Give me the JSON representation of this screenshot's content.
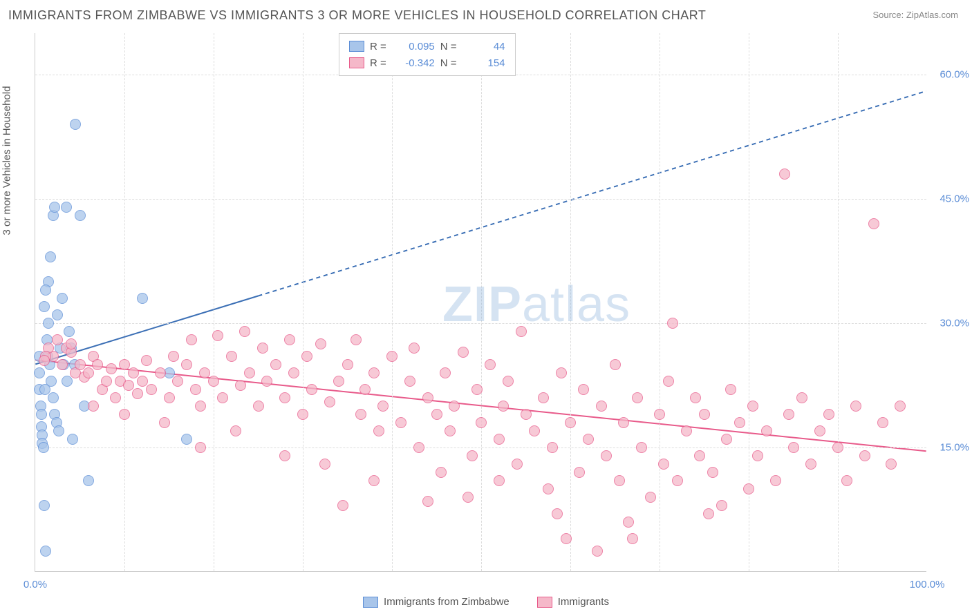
{
  "title": "IMMIGRANTS FROM ZIMBABWE VS IMMIGRANTS 3 OR MORE VEHICLES IN HOUSEHOLD CORRELATION CHART",
  "source_label": "Source: ZipAtlas.com",
  "yaxis_title": "3 or more Vehicles in Household",
  "watermark_a": "ZIP",
  "watermark_b": "atlas",
  "chart": {
    "type": "scatter",
    "xlim": [
      0,
      100
    ],
    "ylim": [
      0,
      65
    ],
    "xtick_labels": [
      {
        "v": 0,
        "label": "0.0%"
      },
      {
        "v": 100,
        "label": "100.0%"
      }
    ],
    "ytick_labels": [
      {
        "v": 15,
        "label": "15.0%"
      },
      {
        "v": 30,
        "label": "30.0%"
      },
      {
        "v": 45,
        "label": "45.0%"
      },
      {
        "v": 60,
        "label": "60.0%"
      }
    ],
    "x_gridlines": [
      10,
      20,
      30,
      40,
      50,
      60,
      70,
      80,
      90
    ],
    "y_gridlines": [
      15,
      30,
      45,
      60
    ],
    "background_color": "#ffffff",
    "grid_color": "#dddddd",
    "axis_color": "#cccccc",
    "tick_label_color": "#5b8dd6",
    "marker_size": 16,
    "series": [
      {
        "name": "Immigrants from Zimbabwe",
        "fill_color": "#a8c5ea",
        "border_color": "#5b8dd6",
        "fill_opacity": 0.45,
        "r_value": "0.095",
        "n_value": "44",
        "trend": {
          "x1": 0,
          "y1": 25,
          "x2": 100,
          "y2": 58,
          "solid_until_x": 25,
          "color": "#3b6fb5",
          "width": 2
        },
        "points": [
          [
            0.5,
            26
          ],
          [
            0.5,
            24
          ],
          [
            0.5,
            22
          ],
          [
            0.6,
            20
          ],
          [
            0.7,
            19
          ],
          [
            0.7,
            17.5
          ],
          [
            0.8,
            16.5
          ],
          [
            0.8,
            15.5
          ],
          [
            0.9,
            15
          ],
          [
            1.0,
            8
          ],
          [
            1.2,
            2.5
          ],
          [
            1.5,
            30
          ],
          [
            1.5,
            35
          ],
          [
            1.7,
            38
          ],
          [
            2.0,
            43
          ],
          [
            2.2,
            44
          ],
          [
            2.5,
            31
          ],
          [
            3.0,
            33
          ],
          [
            3.5,
            44
          ],
          [
            3.8,
            29
          ],
          [
            4.0,
            27
          ],
          [
            4.2,
            16
          ],
          [
            4.5,
            54
          ],
          [
            5.0,
            43
          ],
          [
            5.5,
            20
          ],
          [
            6.0,
            11
          ],
          [
            1.0,
            32
          ],
          [
            1.2,
            34
          ],
          [
            1.3,
            28
          ],
          [
            1.4,
            26
          ],
          [
            1.6,
            25
          ],
          [
            1.8,
            23
          ],
          [
            2.0,
            21
          ],
          [
            2.2,
            19
          ],
          [
            2.4,
            18
          ],
          [
            2.6,
            17
          ],
          [
            2.8,
            27
          ],
          [
            3.2,
            25
          ],
          [
            3.6,
            23
          ],
          [
            4.4,
            25
          ],
          [
            12.0,
            33
          ],
          [
            15.0,
            24
          ],
          [
            17.0,
            16
          ],
          [
            1.1,
            22
          ]
        ]
      },
      {
        "name": "Immigrants",
        "fill_color": "#f5b8c9",
        "border_color": "#e85a8a",
        "fill_opacity": 0.45,
        "r_value": "-0.342",
        "n_value": "154",
        "trend": {
          "x1": 0,
          "y1": 25.5,
          "x2": 100,
          "y2": 14.5,
          "solid_until_x": 100,
          "color": "#e85a8a",
          "width": 2
        },
        "points": [
          [
            2,
            26
          ],
          [
            3,
            25
          ],
          [
            3.5,
            27
          ],
          [
            4,
            26.5
          ],
          [
            4.5,
            24
          ],
          [
            5,
            25
          ],
          [
            5.5,
            23.5
          ],
          [
            6,
            24
          ],
          [
            6.5,
            26
          ],
          [
            7,
            25
          ],
          [
            7.5,
            22
          ],
          [
            8,
            23
          ],
          [
            8.5,
            24.5
          ],
          [
            9,
            21
          ],
          [
            9.5,
            23
          ],
          [
            10,
            25
          ],
          [
            10.5,
            22.5
          ],
          [
            11,
            24
          ],
          [
            11.5,
            21.5
          ],
          [
            12,
            23
          ],
          [
            12.5,
            25.5
          ],
          [
            13,
            22
          ],
          [
            14,
            24
          ],
          [
            15,
            21
          ],
          [
            15.5,
            26
          ],
          [
            16,
            23
          ],
          [
            17,
            25
          ],
          [
            17.5,
            28
          ],
          [
            18,
            22
          ],
          [
            18.5,
            20
          ],
          [
            19,
            24
          ],
          [
            20,
            23
          ],
          [
            20.5,
            28.5
          ],
          [
            21,
            21
          ],
          [
            22,
            26
          ],
          [
            23,
            22.5
          ],
          [
            23.5,
            29
          ],
          [
            24,
            24
          ],
          [
            25,
            20
          ],
          [
            25.5,
            27
          ],
          [
            26,
            23
          ],
          [
            27,
            25
          ],
          [
            28,
            21
          ],
          [
            28.5,
            28
          ],
          [
            29,
            24
          ],
          [
            30,
            19
          ],
          [
            30.5,
            26
          ],
          [
            31,
            22
          ],
          [
            32,
            27.5
          ],
          [
            33,
            20.5
          ],
          [
            34,
            23
          ],
          [
            34.5,
            8
          ],
          [
            35,
            25
          ],
          [
            36,
            28
          ],
          [
            36.5,
            19
          ],
          [
            37,
            22
          ],
          [
            38,
            24
          ],
          [
            38.5,
            17
          ],
          [
            39,
            20
          ],
          [
            40,
            26
          ],
          [
            41,
            18
          ],
          [
            42,
            23
          ],
          [
            42.5,
            27
          ],
          [
            43,
            15
          ],
          [
            44,
            21
          ],
          [
            45,
            19
          ],
          [
            46,
            24
          ],
          [
            46.5,
            17
          ],
          [
            47,
            20
          ],
          [
            48,
            26.5
          ],
          [
            49,
            14
          ],
          [
            49.5,
            22
          ],
          [
            50,
            18
          ],
          [
            51,
            25
          ],
          [
            52,
            16
          ],
          [
            52.5,
            20
          ],
          [
            53,
            23
          ],
          [
            54,
            13
          ],
          [
            54.5,
            29
          ],
          [
            55,
            19
          ],
          [
            56,
            17
          ],
          [
            57,
            21
          ],
          [
            57.5,
            10
          ],
          [
            58,
            15
          ],
          [
            59,
            24
          ],
          [
            59.5,
            4
          ],
          [
            60,
            18
          ],
          [
            61,
            12
          ],
          [
            61.5,
            22
          ],
          [
            62,
            16
          ],
          [
            63,
            2.5
          ],
          [
            63.5,
            20
          ],
          [
            64,
            14
          ],
          [
            65,
            25
          ],
          [
            65.5,
            11
          ],
          [
            66,
            18
          ],
          [
            67,
            4
          ],
          [
            67.5,
            21
          ],
          [
            68,
            15
          ],
          [
            69,
            9
          ],
          [
            70,
            19
          ],
          [
            70.5,
            13
          ],
          [
            71,
            23
          ],
          [
            71.5,
            30
          ],
          [
            72,
            11
          ],
          [
            73,
            17
          ],
          [
            74,
            21
          ],
          [
            74.5,
            14
          ],
          [
            75,
            19
          ],
          [
            76,
            12
          ],
          [
            77,
            8
          ],
          [
            77.5,
            16
          ],
          [
            78,
            22
          ],
          [
            79,
            18
          ],
          [
            80,
            10
          ],
          [
            80.5,
            20
          ],
          [
            81,
            14
          ],
          [
            82,
            17
          ],
          [
            83,
            11
          ],
          [
            84,
            48
          ],
          [
            84.5,
            19
          ],
          [
            85,
            15
          ],
          [
            86,
            21
          ],
          [
            87,
            13
          ],
          [
            88,
            17
          ],
          [
            89,
            19
          ],
          [
            90,
            15
          ],
          [
            91,
            11
          ],
          [
            92,
            20
          ],
          [
            93,
            14
          ],
          [
            94,
            42
          ],
          [
            95,
            18
          ],
          [
            96,
            13
          ],
          [
            97,
            20
          ],
          [
            75.5,
            7
          ],
          [
            66.5,
            6
          ],
          [
            58.5,
            7
          ],
          [
            45.5,
            12
          ],
          [
            52,
            11
          ],
          [
            48.5,
            9
          ],
          [
            44,
            8.5
          ],
          [
            38,
            11
          ],
          [
            32.5,
            13
          ],
          [
            28,
            14
          ],
          [
            22.5,
            17
          ],
          [
            18.5,
            15
          ],
          [
            14.5,
            18
          ],
          [
            10,
            19
          ],
          [
            6.5,
            20
          ],
          [
            4,
            27.5
          ],
          [
            2.5,
            28
          ],
          [
            1.5,
            27
          ],
          [
            1.2,
            26
          ],
          [
            1.0,
            25.5
          ]
        ]
      }
    ]
  },
  "legend_top": {
    "r_label": "R =",
    "n_label": "N ="
  },
  "legend_bottom": [
    "Immigrants from Zimbabwe",
    "Immigrants"
  ]
}
